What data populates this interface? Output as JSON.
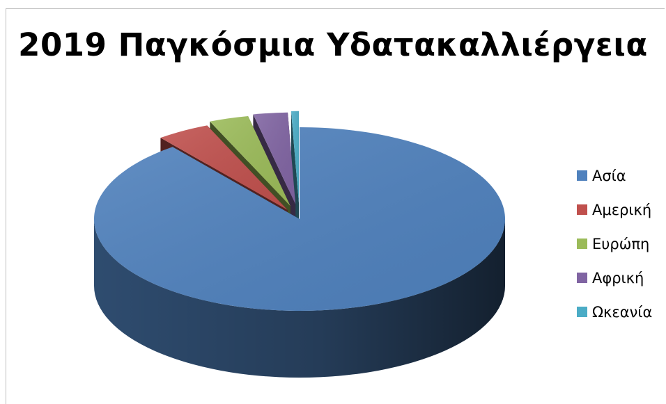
{
  "chart_data": {
    "type": "pie",
    "title": "2019 Παγκόσμια Υδατακαλλιέργεια",
    "categories": [
      "Ασία",
      "Αμερική",
      "Ευρώπη",
      "Αφρική",
      "Ωκεανία"
    ],
    "values": [
      89.4,
      4.2,
      3.1,
      2.7,
      0.6
    ],
    "colors": [
      "#4f81bd",
      "#c0504d",
      "#9bbb59",
      "#8064a2",
      "#4bacc6"
    ],
    "exploded": true,
    "three_d": true,
    "legend_position": "right"
  }
}
